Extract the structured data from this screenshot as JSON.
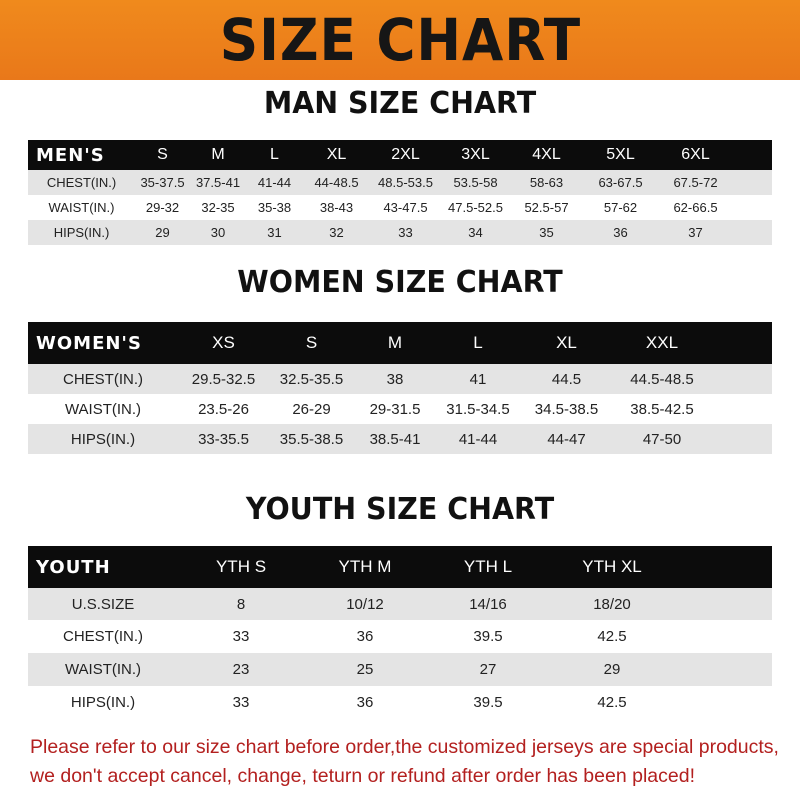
{
  "title": "SIZE CHART",
  "men": {
    "title": "MAN SIZE CHART",
    "header": [
      "MEN'S",
      "S",
      "M",
      "L",
      "XL",
      "2XL",
      "3XL",
      "4XL",
      "5XL",
      "6XL"
    ],
    "rows": [
      [
        "CHEST(IN.)",
        "35-37.5",
        "37.5-41",
        "41-44",
        "44-48.5",
        "48.5-53.5",
        "53.5-58",
        "58-63",
        "63-67.5",
        "67.5-72"
      ],
      [
        "WAIST(IN.)",
        "29-32",
        "32-35",
        "35-38",
        "38-43",
        "43-47.5",
        "47.5-52.5",
        "52.5-57",
        "57-62",
        "62-66.5"
      ],
      [
        "HIPS(IN.)",
        "29",
        "30",
        "31",
        "32",
        "33",
        "34",
        "35",
        "36",
        "37"
      ]
    ]
  },
  "women": {
    "title": "WOMEN SIZE CHART",
    "header": [
      "WOMEN'S",
      "XS",
      "S",
      "M",
      "L",
      "XL",
      "XXL"
    ],
    "rows": [
      [
        "CHEST(IN.)",
        "29.5-32.5",
        "32.5-35.5",
        "38",
        "41",
        "44.5",
        "44.5-48.5"
      ],
      [
        "WAIST(IN.)",
        "23.5-26",
        "26-29",
        "29-31.5",
        "31.5-34.5",
        "34.5-38.5",
        "38.5-42.5"
      ],
      [
        "HIPS(IN.)",
        "33-35.5",
        "35.5-38.5",
        "38.5-41",
        "41-44",
        "44-47",
        "47-50"
      ]
    ]
  },
  "youth": {
    "title": "YOUTH SIZE CHART",
    "header": [
      "YOUTH",
      "YTH S",
      "YTH M",
      "YTH L",
      "YTH XL"
    ],
    "rows": [
      [
        "U.S.SIZE",
        "8",
        "10/12",
        "14/16",
        "18/20"
      ],
      [
        "CHEST(IN.)",
        "33",
        "36",
        "39.5",
        "42.5"
      ],
      [
        "WAIST(IN.)",
        "23",
        "25",
        "27",
        "29"
      ],
      [
        "HIPS(IN.)",
        "33",
        "36",
        "39.5",
        "42.5"
      ]
    ]
  },
  "note": {
    "line1": "Please refer to our size chart before order,the customized jerseys are special products,",
    "line2": "we don't accept cancel, change, teturn or refund after order has been placed!"
  },
  "colors": {
    "banner": "#ef8420",
    "header_row": "#0c0c0c",
    "stripe": "#e4e4e4",
    "note": "#b3201f"
  }
}
